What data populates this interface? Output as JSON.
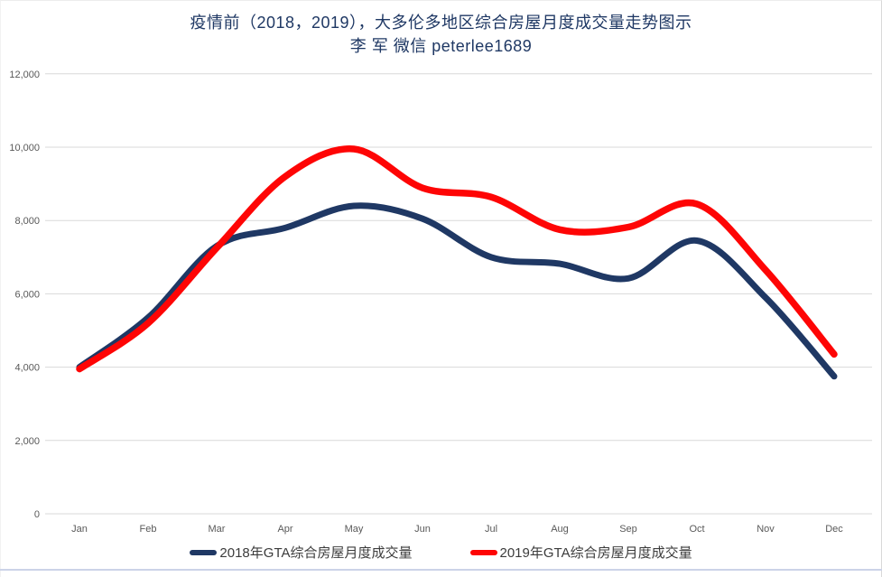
{
  "title": {
    "line1": "疫情前（2018，2019），大多伦多地区综合房屋月度成交量走势图示",
    "line2": "李 军 微信 peterlee1689"
  },
  "colors": {
    "title_text": "#1F3864",
    "series_2018": "#1F3864",
    "series_2019": "#FE0505",
    "axis_text": "#595959",
    "gridline": "#D9D9D9",
    "legend_text": "#3b3b3b",
    "bottom_border": "#CCD3E8"
  },
  "chart_data": {
    "type": "line",
    "smooth": true,
    "grid": true,
    "legend_position": "bottom",
    "categories": [
      "Jan",
      "Feb",
      "Mar",
      "Apr",
      "May",
      "Jun",
      "Jul",
      "Aug",
      "Sep",
      "Oct",
      "Nov",
      "Dec"
    ],
    "series": [
      {
        "name": "2018年GTA综合房屋月度成交量",
        "color_key": "series_2018",
        "stroke_width": 7,
        "values": [
          4000,
          5350,
          7300,
          7800,
          8400,
          8050,
          7000,
          6820,
          6420,
          7450,
          5900,
          3750
        ]
      },
      {
        "name": "2019年GTA综合房屋月度成交量",
        "color_key": "series_2019",
        "stroke_width": 7.5,
        "values": [
          3950,
          5200,
          7250,
          9200,
          9950,
          8890,
          8640,
          7750,
          7820,
          8450,
          6650,
          4350
        ]
      }
    ],
    "xlabel": "",
    "ylabel": "",
    "ylim": [
      0,
      12000
    ],
    "ytick_step": 2000,
    "yticks": [
      0,
      2000,
      4000,
      6000,
      8000,
      10000,
      12000
    ],
    "ytick_labels": [
      "0",
      "2,000",
      "4,000",
      "6,000",
      "8,000",
      "10,000",
      "12,000"
    ]
  }
}
